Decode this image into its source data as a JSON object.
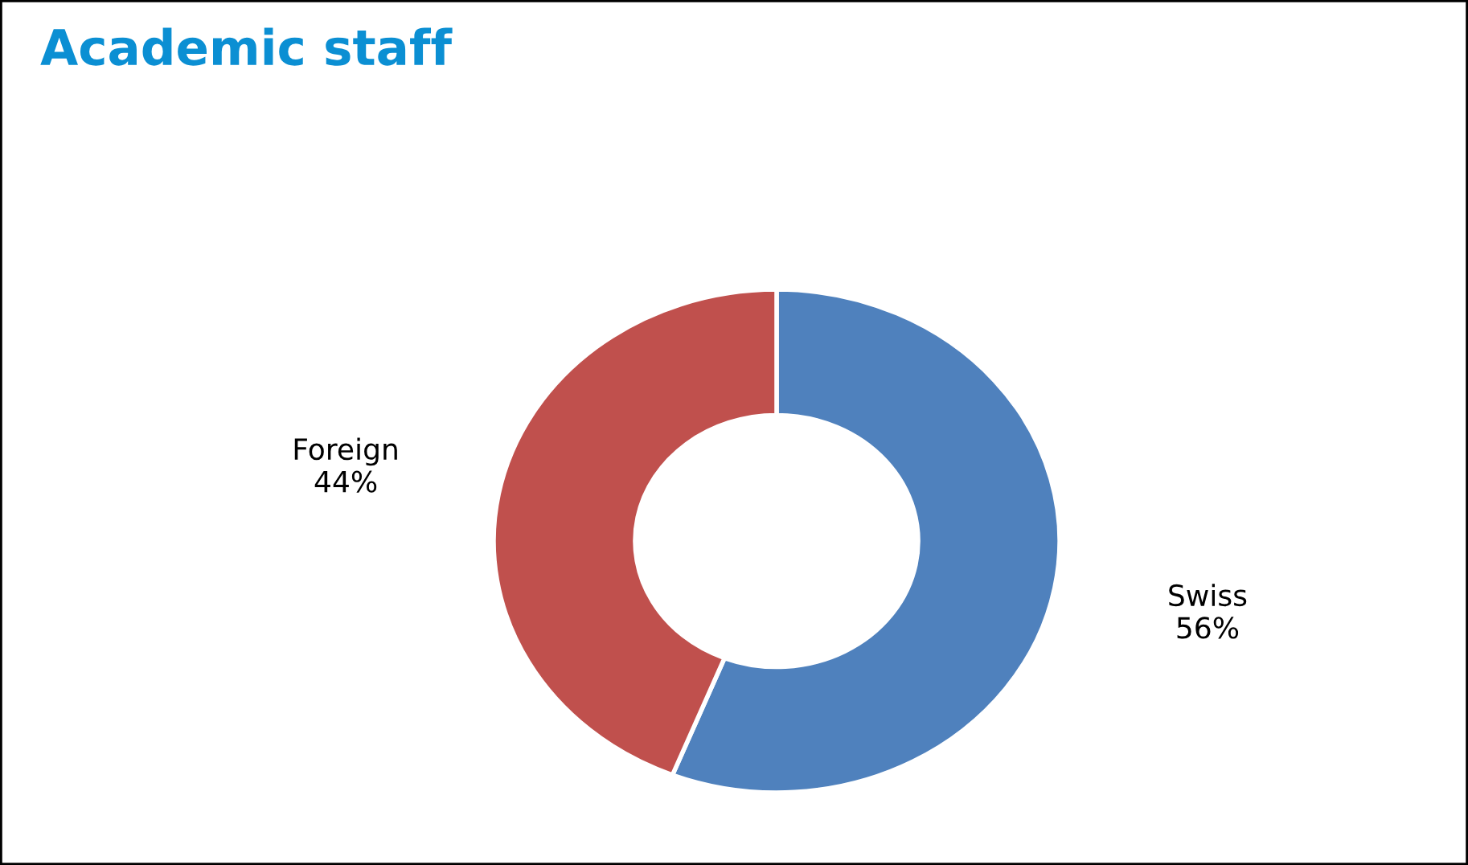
{
  "chart_data": {
    "type": "donut",
    "title": "Academic staff",
    "categories": [
      "Swiss",
      "Foreign"
    ],
    "values": [
      56,
      44
    ],
    "colors": [
      "#4f81bd",
      "#c0504d"
    ],
    "value_labels": [
      "56%",
      "44%"
    ],
    "legend": false
  }
}
